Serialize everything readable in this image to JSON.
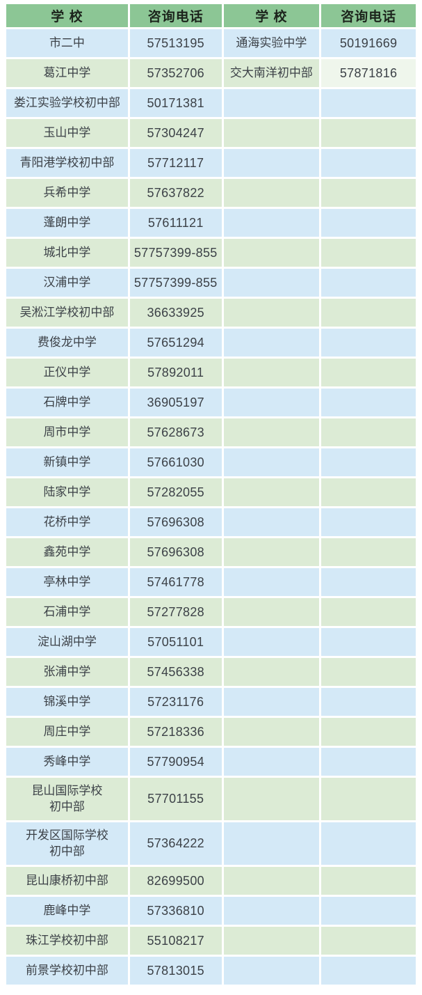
{
  "table": {
    "title": "school-consultation-phone-table",
    "headers": [
      "学 校",
      "咨询电话",
      "学 校",
      "咨询电话"
    ],
    "colors": {
      "header_bg": "#8cc695",
      "row_blue": "#d4e9f7",
      "row_green": "#dcebd5",
      "cell_light": "#eff6ec",
      "gap": "#ffffff",
      "header_text": "#1c241c",
      "cell_text": "#3c4147"
    },
    "rows": [
      {
        "school1": "市二中",
        "phone1": "57513195",
        "school2": "通海实验中学",
        "phone2": "50191669"
      },
      {
        "school1": "葛江中学",
        "phone1": "57352706",
        "school2": "交大南洋初中部",
        "phone2": "57871816",
        "phone2_light": true
      },
      {
        "school1": "娄江实验学校初中部",
        "phone1": "50171381",
        "school2": "",
        "phone2": ""
      },
      {
        "school1": "玉山中学",
        "phone1": "57304247",
        "school2": "",
        "phone2": ""
      },
      {
        "school1": "青阳港学校初中部",
        "phone1": "57712117",
        "school2": "",
        "phone2": ""
      },
      {
        "school1": "兵希中学",
        "phone1": "57637822",
        "school2": "",
        "phone2": ""
      },
      {
        "school1": "蓬朗中学",
        "phone1": "57611121",
        "school2": "",
        "phone2": ""
      },
      {
        "school1": "城北中学",
        "phone1": "57757399-855",
        "school2": "",
        "phone2": ""
      },
      {
        "school1": "汉浦中学",
        "phone1": "57757399-855",
        "school2": "",
        "phone2": ""
      },
      {
        "school1": "吴淞江学校初中部",
        "phone1": "36633925",
        "school2": "",
        "phone2": ""
      },
      {
        "school1": "费俊龙中学",
        "phone1": "57651294",
        "school2": "",
        "phone2": ""
      },
      {
        "school1": "正仪中学",
        "phone1": "57892011",
        "school2": "",
        "phone2": ""
      },
      {
        "school1": "石牌中学",
        "phone1": "36905197",
        "school2": "",
        "phone2": ""
      },
      {
        "school1": "周市中学",
        "phone1": "57628673",
        "school2": "",
        "phone2": ""
      },
      {
        "school1": "新镇中学",
        "phone1": "57661030",
        "school2": "",
        "phone2": ""
      },
      {
        "school1": "陆家中学",
        "phone1": "57282055",
        "school2": "",
        "phone2": ""
      },
      {
        "school1": "花桥中学",
        "phone1": "57696308",
        "school2": "",
        "phone2": ""
      },
      {
        "school1": "鑫苑中学",
        "phone1": "57696308",
        "school2": "",
        "phone2": ""
      },
      {
        "school1": "亭林中学",
        "phone1": "57461778",
        "school2": "",
        "phone2": ""
      },
      {
        "school1": "石浦中学",
        "phone1": "57277828",
        "school2": "",
        "phone2": ""
      },
      {
        "school1": "淀山湖中学",
        "phone1": "57051101",
        "school2": "",
        "phone2": ""
      },
      {
        "school1": "张浦中学",
        "phone1": "57456338",
        "school2": "",
        "phone2": ""
      },
      {
        "school1": "锦溪中学",
        "phone1": "57231176",
        "school2": "",
        "phone2": ""
      },
      {
        "school1": "周庄中学",
        "phone1": "57218336",
        "school2": "",
        "phone2": ""
      },
      {
        "school1": "秀峰中学",
        "phone1": "57790954",
        "school2": "",
        "phone2": ""
      },
      {
        "school1": "昆山国际学校\n初中部",
        "phone1": "57701155",
        "school2": "",
        "phone2": "",
        "tall": true
      },
      {
        "school1": "开发区国际学校\n初中部",
        "phone1": "57364222",
        "school2": "",
        "phone2": "",
        "tall": true
      },
      {
        "school1": "昆山康桥初中部",
        "phone1": "82699500",
        "school2": "",
        "phone2": ""
      },
      {
        "school1": "鹿峰中学",
        "phone1": "57336810",
        "school2": "",
        "phone2": ""
      },
      {
        "school1": "珠江学校初中部",
        "phone1": "55108217",
        "school2": "",
        "phone2": ""
      },
      {
        "school1": "前景学校初中部",
        "phone1": "57813015",
        "school2": "",
        "phone2": ""
      }
    ]
  }
}
